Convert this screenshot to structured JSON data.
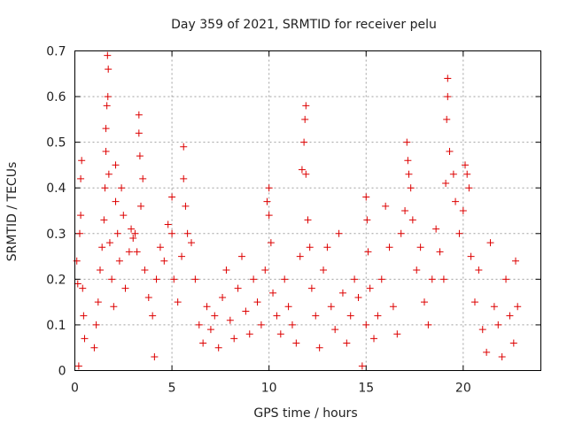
{
  "chart_data": {
    "type": "scatter",
    "title": "Day 359 of 2021, SRMTID for receiver pelu",
    "xlabel": "GPS time / hours",
    "ylabel": "SRMTID / TECUs",
    "xlim": [
      0,
      24
    ],
    "ylim": [
      0,
      0.7
    ],
    "xticks": [
      0,
      5,
      10,
      15,
      20
    ],
    "xtick_labels": [
      "0",
      "5",
      "10",
      "15",
      "20"
    ],
    "yticks": [
      0,
      0.1,
      0.2,
      0.3,
      0.4,
      0.5,
      0.6,
      0.7
    ],
    "ytick_labels": [
      "0",
      "0.1",
      "0.2",
      "0.3",
      "0.4",
      "0.5",
      "0.6",
      "0.7"
    ],
    "grid": true,
    "marker": "+",
    "color": "#dd0000",
    "series": [
      {
        "name": "SRMTID",
        "points": [
          [
            0.1,
            0.24
          ],
          [
            0.15,
            0.19
          ],
          [
            0.2,
            0.01
          ],
          [
            0.3,
            0.42
          ],
          [
            0.3,
            0.34
          ],
          [
            0.35,
            0.46
          ],
          [
            0.4,
            0.18
          ],
          [
            0.45,
            0.12
          ],
          [
            0.5,
            0.07
          ],
          [
            0.25,
            0.3
          ],
          [
            1.0,
            0.05
          ],
          [
            1.1,
            0.1
          ],
          [
            1.2,
            0.15
          ],
          [
            1.3,
            0.22
          ],
          [
            1.4,
            0.27
          ],
          [
            1.5,
            0.33
          ],
          [
            1.55,
            0.4
          ],
          [
            1.6,
            0.48
          ],
          [
            1.6,
            0.53
          ],
          [
            1.65,
            0.58
          ],
          [
            1.7,
            0.6
          ],
          [
            1.72,
            0.66
          ],
          [
            1.68,
            0.69
          ],
          [
            1.75,
            0.43
          ],
          [
            1.8,
            0.28
          ],
          [
            1.9,
            0.2
          ],
          [
            2.0,
            0.14
          ],
          [
            2.1,
            0.45
          ],
          [
            2.1,
            0.37
          ],
          [
            2.2,
            0.3
          ],
          [
            2.3,
            0.24
          ],
          [
            2.4,
            0.4
          ],
          [
            2.5,
            0.34
          ],
          [
            2.6,
            0.18
          ],
          [
            2.8,
            0.26
          ],
          [
            2.9,
            0.31
          ],
          [
            3.0,
            0.29
          ],
          [
            3.1,
            0.3
          ],
          [
            3.2,
            0.26
          ],
          [
            3.3,
            0.52
          ],
          [
            3.3,
            0.56
          ],
          [
            3.35,
            0.47
          ],
          [
            3.4,
            0.36
          ],
          [
            3.5,
            0.42
          ],
          [
            3.6,
            0.22
          ],
          [
            3.8,
            0.16
          ],
          [
            4.0,
            0.12
          ],
          [
            4.1,
            0.03
          ],
          [
            4.2,
            0.2
          ],
          [
            4.4,
            0.27
          ],
          [
            4.6,
            0.24
          ],
          [
            4.8,
            0.32
          ],
          [
            5.0,
            0.38
          ],
          [
            5.0,
            0.3
          ],
          [
            5.1,
            0.2
          ],
          [
            5.3,
            0.15
          ],
          [
            5.5,
            0.25
          ],
          [
            5.6,
            0.49
          ],
          [
            5.6,
            0.42
          ],
          [
            5.7,
            0.36
          ],
          [
            5.8,
            0.3
          ],
          [
            6.0,
            0.28
          ],
          [
            6.2,
            0.2
          ],
          [
            6.4,
            0.1
          ],
          [
            6.6,
            0.06
          ],
          [
            6.8,
            0.14
          ],
          [
            7.0,
            0.09
          ],
          [
            7.2,
            0.12
          ],
          [
            7.4,
            0.05
          ],
          [
            7.6,
            0.16
          ],
          [
            7.8,
            0.22
          ],
          [
            8.0,
            0.11
          ],
          [
            8.2,
            0.07
          ],
          [
            8.4,
            0.18
          ],
          [
            8.6,
            0.25
          ],
          [
            8.8,
            0.13
          ],
          [
            9.0,
            0.08
          ],
          [
            9.2,
            0.2
          ],
          [
            9.4,
            0.15
          ],
          [
            9.6,
            0.1
          ],
          [
            9.8,
            0.22
          ],
          [
            9.9,
            0.37
          ],
          [
            10.0,
            0.4
          ],
          [
            10.0,
            0.34
          ],
          [
            10.1,
            0.28
          ],
          [
            10.2,
            0.17
          ],
          [
            10.4,
            0.12
          ],
          [
            10.6,
            0.08
          ],
          [
            10.8,
            0.2
          ],
          [
            11.0,
            0.14
          ],
          [
            11.2,
            0.1
          ],
          [
            11.4,
            0.06
          ],
          [
            11.6,
            0.25
          ],
          [
            11.7,
            0.44
          ],
          [
            11.8,
            0.5
          ],
          [
            11.85,
            0.55
          ],
          [
            11.9,
            0.58
          ],
          [
            11.9,
            0.43
          ],
          [
            12.0,
            0.33
          ],
          [
            12.1,
            0.27
          ],
          [
            12.2,
            0.18
          ],
          [
            12.4,
            0.12
          ],
          [
            12.6,
            0.05
          ],
          [
            12.8,
            0.22
          ],
          [
            13.0,
            0.27
          ],
          [
            13.2,
            0.14
          ],
          [
            13.4,
            0.09
          ],
          [
            13.6,
            0.3
          ],
          [
            13.8,
            0.17
          ],
          [
            14.0,
            0.06
          ],
          [
            14.2,
            0.12
          ],
          [
            14.4,
            0.2
          ],
          [
            14.6,
            0.16
          ],
          [
            14.8,
            0.01
          ],
          [
            15.0,
            0.1
          ],
          [
            15.0,
            0.38
          ],
          [
            15.05,
            0.33
          ],
          [
            15.1,
            0.26
          ],
          [
            15.2,
            0.18
          ],
          [
            15.4,
            0.07
          ],
          [
            15.6,
            0.12
          ],
          [
            15.8,
            0.2
          ],
          [
            16.0,
            0.36
          ],
          [
            16.2,
            0.27
          ],
          [
            16.4,
            0.14
          ],
          [
            16.6,
            0.08
          ],
          [
            16.8,
            0.3
          ],
          [
            17.0,
            0.35
          ],
          [
            17.1,
            0.5
          ],
          [
            17.15,
            0.46
          ],
          [
            17.2,
            0.43
          ],
          [
            17.3,
            0.4
          ],
          [
            17.4,
            0.33
          ],
          [
            17.6,
            0.22
          ],
          [
            17.8,
            0.27
          ],
          [
            18.0,
            0.15
          ],
          [
            18.2,
            0.1
          ],
          [
            18.4,
            0.2
          ],
          [
            18.6,
            0.31
          ],
          [
            18.8,
            0.26
          ],
          [
            19.0,
            0.2
          ],
          [
            19.1,
            0.41
          ],
          [
            19.15,
            0.55
          ],
          [
            19.2,
            0.6
          ],
          [
            19.2,
            0.64
          ],
          [
            19.3,
            0.48
          ],
          [
            19.5,
            0.43
          ],
          [
            19.6,
            0.37
          ],
          [
            19.8,
            0.3
          ],
          [
            20.0,
            0.35
          ],
          [
            20.1,
            0.45
          ],
          [
            20.2,
            0.43
          ],
          [
            20.3,
            0.4
          ],
          [
            20.4,
            0.25
          ],
          [
            20.6,
            0.15
          ],
          [
            20.8,
            0.22
          ],
          [
            21.0,
            0.09
          ],
          [
            21.2,
            0.04
          ],
          [
            21.4,
            0.28
          ],
          [
            21.6,
            0.14
          ],
          [
            21.8,
            0.1
          ],
          [
            22.0,
            0.03
          ],
          [
            22.2,
            0.2
          ],
          [
            22.4,
            0.12
          ],
          [
            22.6,
            0.06
          ],
          [
            22.7,
            0.24
          ],
          [
            22.8,
            0.14
          ]
        ]
      }
    ]
  }
}
